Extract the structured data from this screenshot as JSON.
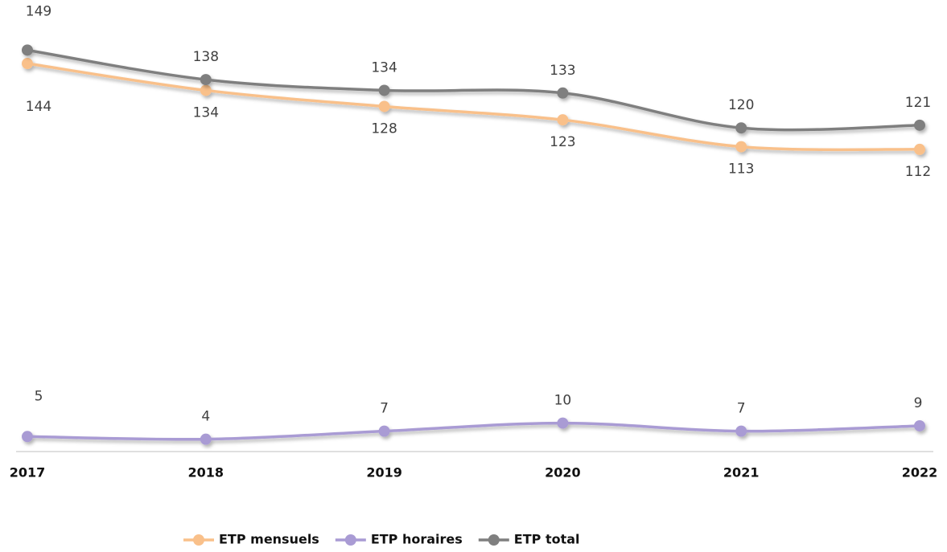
{
  "chart_data": {
    "type": "line",
    "categories": [
      "2017",
      "2018",
      "2019",
      "2020",
      "2021",
      "2022"
    ],
    "series": [
      {
        "name": "ETP mensuels",
        "color": "#f9c08a",
        "values": [
          144,
          134,
          128,
          123,
          113,
          112
        ]
      },
      {
        "name": "ETP horaires",
        "color": "#a99bd4",
        "values": [
          5,
          4,
          7,
          10,
          7,
          9
        ]
      },
      {
        "name": "ETP total",
        "color": "#7f7f7f",
        "values": [
          149,
          138,
          134,
          133,
          120,
          121
        ]
      }
    ],
    "ylim": [
      0,
      150
    ],
    "smooth": true
  }
}
